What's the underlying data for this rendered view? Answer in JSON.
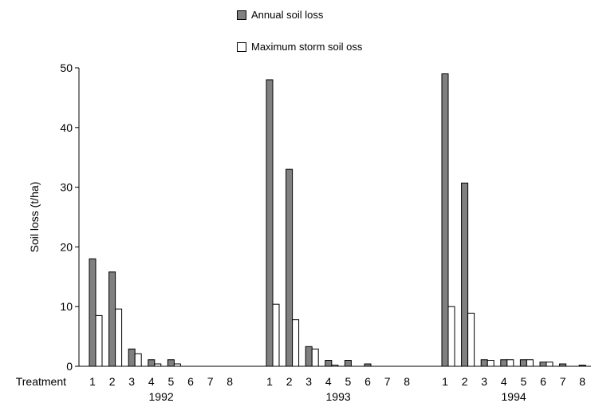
{
  "chart_data": {
    "type": "bar",
    "title": "",
    "ylabel": "Soil loss (t/ha)",
    "xlabel": "Treatment",
    "ylim": [
      0,
      50
    ],
    "yticks": [
      0,
      10,
      20,
      30,
      40,
      50
    ],
    "grid": false,
    "legend_position": "top-center",
    "groups": [
      "1992",
      "1993",
      "1994"
    ],
    "categories": [
      "1",
      "2",
      "3",
      "4",
      "5",
      "6",
      "7",
      "8"
    ],
    "series": [
      {
        "name": "Annual soil loss",
        "color": "#808080",
        "values": {
          "1992": [
            18,
            15.8,
            2.9,
            1.1,
            1.1,
            0,
            0,
            0
          ],
          "1993": [
            48,
            33,
            3.3,
            1.0,
            1.0,
            0.4,
            0,
            0
          ],
          "1994": [
            49,
            30.7,
            1.1,
            1.1,
            1.1,
            0.7,
            0.4,
            0.2
          ]
        }
      },
      {
        "name": "Maximum storm soil oss",
        "color": "#ffffff",
        "values": {
          "1992": [
            8.5,
            9.6,
            2.1,
            0.4,
            0.4,
            0,
            0,
            0
          ],
          "1993": [
            10.4,
            7.8,
            2.9,
            0.2,
            0,
            0,
            0,
            0
          ],
          "1994": [
            10,
            8.9,
            1.0,
            1.1,
            1.1,
            0.7,
            0,
            0
          ]
        }
      }
    ]
  }
}
